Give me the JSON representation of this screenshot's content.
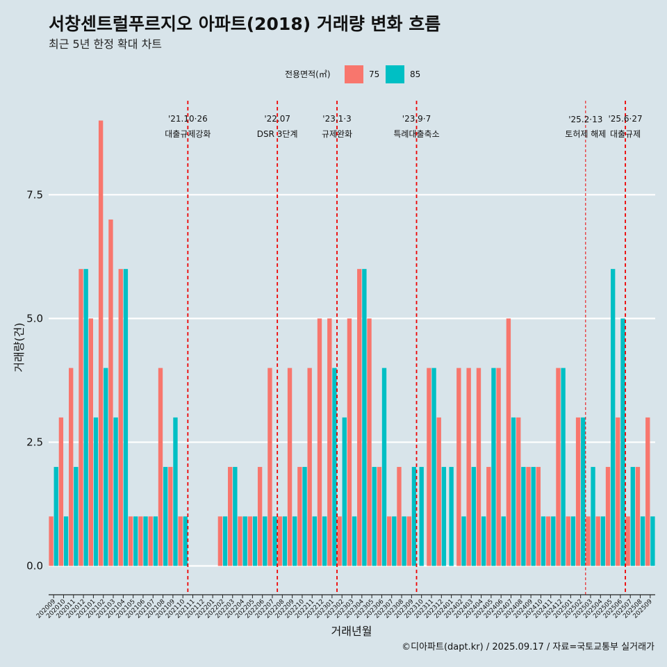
{
  "title": "서창센트럴푸르지오 아파트(2018) 거래량 변화 흐름",
  "subtitle": "최근 5년 한정 확대 차트",
  "legend": {
    "title": "전용면적(㎡)",
    "items": [
      {
        "label": "75",
        "color": "#f8766d"
      },
      {
        "label": "85",
        "color": "#00bfc4"
      }
    ]
  },
  "caption": "©디아파트(dapt.kr) / 2025.09.17 / 자료=국토교통부 실거래가",
  "chart_data": {
    "type": "bar",
    "xlabel": "거래년월",
    "ylabel": "거래량(건)",
    "ylim": [
      -0.4,
      9.4
    ],
    "yticks": [
      0.0,
      2.5,
      5.0,
      7.5
    ],
    "ytick_labels": [
      "0.0",
      "2.5",
      "5.0",
      "7.5"
    ],
    "grid": true,
    "legend_position": "top",
    "months": [
      "202009",
      "202010",
      "202011",
      "202012",
      "202101",
      "202102",
      "202103",
      "202104",
      "202105",
      "202106",
      "202107",
      "202108",
      "202109",
      "202110",
      "202111",
      "202112",
      "202201",
      "202202",
      "202203",
      "202204",
      "202205",
      "202206",
      "202207",
      "202208",
      "202209",
      "202210",
      "202211",
      "202212",
      "202301",
      "202302",
      "202303",
      "202304",
      "202305",
      "202306",
      "202307",
      "202308",
      "202309",
      "202310",
      "202311",
      "202312",
      "202401",
      "202402",
      "202403",
      "202404",
      "202405",
      "202406",
      "202407",
      "202408",
      "202409",
      "202410",
      "202411",
      "202412",
      "202501",
      "202502",
      "202503",
      "202504",
      "202505",
      "202506",
      "202507",
      "202508",
      "202509"
    ],
    "bars": [
      {
        "m": 0,
        "pair": [
          1,
          2
        ]
      },
      {
        "m": 1,
        "pair": [
          3,
          1
        ]
      },
      {
        "m": 2,
        "pair": [
          4,
          2
        ]
      },
      {
        "m": 3,
        "pair": [
          6,
          6
        ]
      },
      {
        "m": 4,
        "pair": [
          5,
          3
        ]
      },
      {
        "m": 5,
        "pair": [
          9,
          4
        ]
      },
      {
        "m": 6,
        "pair": [
          7,
          3
        ]
      },
      {
        "m": 7,
        "pair": [
          6,
          6
        ]
      },
      {
        "m": 8,
        "pair": [
          1,
          1
        ]
      },
      {
        "m": 9,
        "pair": [
          1,
          1
        ]
      },
      {
        "m": 10,
        "pair": [
          1,
          1
        ]
      },
      {
        "m": 11,
        "pair": [
          4,
          2
        ]
      },
      {
        "m": 12,
        "pair": [
          2,
          3
        ]
      },
      {
        "m": 13,
        "pair": [
          1,
          1
        ]
      },
      {
        "m": 17,
        "pair": [
          1,
          1
        ]
      },
      {
        "m": 18,
        "pair": [
          2,
          2
        ]
      },
      {
        "m": 19,
        "pair": [
          1,
          1
        ]
      },
      {
        "m": 20,
        "pair": [
          1,
          1
        ]
      },
      {
        "m": 21,
        "pair": [
          2,
          1
        ]
      },
      {
        "m": 22,
        "pair": [
          4,
          1
        ]
      },
      {
        "m": 23,
        "pair": [
          1,
          1
        ]
      },
      {
        "m": 24,
        "pair": [
          4,
          1
        ]
      },
      {
        "m": 25,
        "pair": [
          2,
          2
        ]
      },
      {
        "m": 26,
        "pair": [
          4,
          1
        ]
      },
      {
        "m": 27,
        "pair": [
          5,
          1
        ]
      },
      {
        "m": 28,
        "pair": [
          5,
          4
        ]
      },
      {
        "m": 29,
        "pair": [
          1,
          3
        ]
      },
      {
        "m": 30,
        "pair": [
          5,
          1
        ]
      },
      {
        "m": 31,
        "pair": [
          6,
          6
        ]
      },
      {
        "m": 32,
        "pair": [
          5,
          2
        ]
      },
      {
        "m": 33,
        "pair": [
          2,
          4
        ]
      },
      {
        "m": 34,
        "pair": [
          1,
          1
        ]
      },
      {
        "m": 35,
        "pair": [
          2,
          1
        ]
      },
      {
        "m": 36,
        "pair": [
          1,
          2
        ]
      },
      {
        "m": 38,
        "pair": [
          4,
          4
        ]
      },
      {
        "m": 39,
        "pair": [
          3,
          2
        ]
      },
      {
        "m": 41,
        "pair": [
          4,
          1
        ]
      },
      {
        "m": 42,
        "pair": [
          4,
          2
        ]
      },
      {
        "m": 43,
        "pair": [
          4,
          1
        ]
      },
      {
        "m": 44,
        "pair": [
          2,
          4
        ]
      },
      {
        "m": 45,
        "pair": [
          4,
          1
        ]
      },
      {
        "m": 46,
        "pair": [
          5,
          3
        ]
      },
      {
        "m": 47,
        "pair": [
          3,
          2
        ]
      },
      {
        "m": 48,
        "pair": [
          2,
          2
        ]
      },
      {
        "m": 49,
        "pair": [
          2,
          1
        ]
      },
      {
        "m": 50,
        "pair": [
          1,
          1
        ]
      },
      {
        "m": 51,
        "pair": [
          4,
          4
        ]
      },
      {
        "m": 52,
        "pair": [
          1,
          1
        ]
      },
      {
        "m": 53,
        "pair": [
          3,
          3
        ]
      },
      {
        "m": 54,
        "pair": [
          1,
          2
        ]
      },
      {
        "m": 55,
        "pair": [
          1,
          1
        ]
      },
      {
        "m": 56,
        "pair": [
          2,
          6
        ]
      },
      {
        "m": 57,
        "pair": [
          3,
          5
        ]
      },
      {
        "m": 58,
        "pair": [
          1,
          2
        ]
      },
      {
        "m": 59,
        "pair": [
          2,
          1
        ]
      },
      {
        "m": 60,
        "pair": [
          3,
          1
        ]
      }
    ],
    "pair_colors": [
      "#f8766d",
      "#00bfc4"
    ],
    "single_bars": [
      {
        "m": 37,
        "value": 2,
        "color": "#00bfc4"
      },
      {
        "m": 40,
        "value": 2,
        "color": "#00bfc4"
      }
    ],
    "events": [
      {
        "m": 13.5,
        "date": "'21.10·26",
        "label": "대출규제강화",
        "style": "bold"
      },
      {
        "m": 22.5,
        "date": "'22.07",
        "label": "DSR 3단계",
        "style": "bold"
      },
      {
        "m": 28.5,
        "date": "'23.1·3",
        "label": "규제완화",
        "style": "bold"
      },
      {
        "m": 36.5,
        "date": "'23.9·7",
        "label": "특례대출축소",
        "style": "bold"
      },
      {
        "m": 53.5,
        "date": "'25.2·13",
        "label": "토허제 해제",
        "style": "thin"
      },
      {
        "m": 57.5,
        "date": "'25.6·27",
        "label": "대출규제",
        "style": "bold"
      }
    ]
  }
}
